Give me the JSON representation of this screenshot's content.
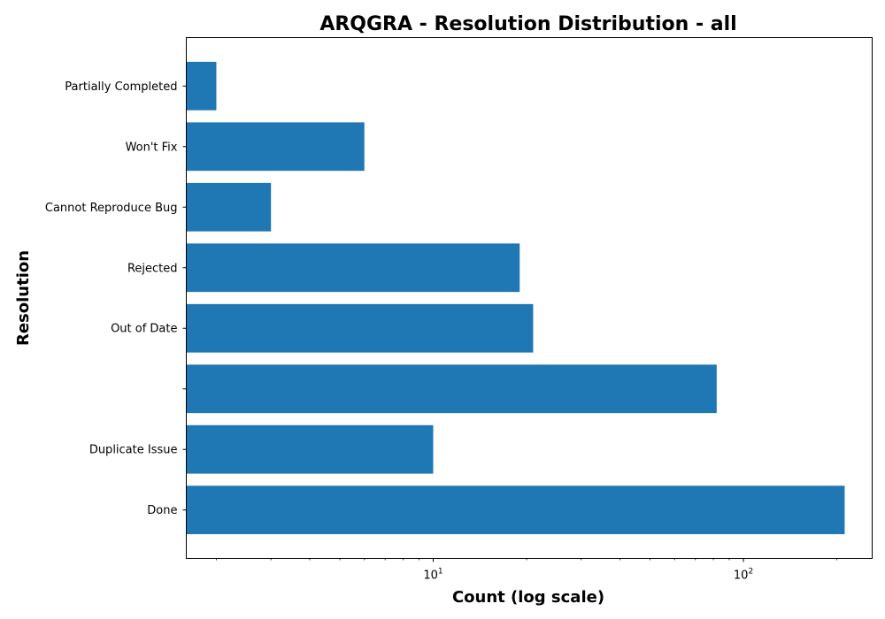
{
  "chart_data": {
    "type": "bar",
    "orientation": "horizontal",
    "title": "ARQGRA - Resolution Distribution - all",
    "xlabel": "Count (log scale)",
    "ylabel": "Resolution",
    "xscale": "log",
    "xlim": [
      1.6,
      260
    ],
    "x_ticks": [
      {
        "value": 10,
        "base": "10",
        "exp": "1"
      },
      {
        "value": 100,
        "base": "10",
        "exp": "2"
      }
    ],
    "categories": [
      "Done",
      "Duplicate Issue",
      "",
      "Out of Date",
      "Rejected",
      "Cannot Reproduce Bug",
      "Won't Fix",
      "Partially Completed"
    ],
    "values": [
      212,
      10,
      82,
      21,
      19,
      3,
      6,
      2
    ],
    "bar_color": "#1f77b4",
    "grid": false,
    "legend": "none"
  }
}
